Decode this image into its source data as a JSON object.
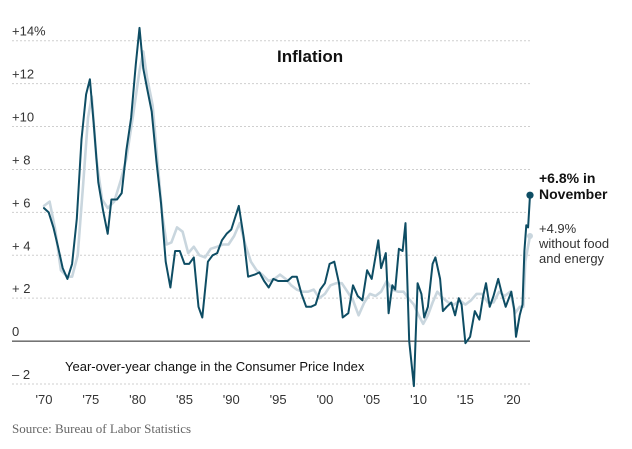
{
  "chart_data": {
    "type": "line",
    "title": "Inflation",
    "subtitle": "Year-over-year change in the Consumer Price Index",
    "source": "Source: Bureau of Labor Statistics",
    "x_ticks": [
      {
        "value": 1970,
        "label": "'70"
      },
      {
        "value": 1975,
        "label": "'75"
      },
      {
        "value": 1980,
        "label": "'80"
      },
      {
        "value": 1985,
        "label": "'85"
      },
      {
        "value": 1990,
        "label": "'90"
      },
      {
        "value": 1995,
        "label": "'95"
      },
      {
        "value": 2000,
        "label": "'00"
      },
      {
        "value": 2005,
        "label": "'05"
      },
      {
        "value": 2010,
        "label": "'10"
      },
      {
        "value": 2015,
        "label": "'15"
      },
      {
        "value": 2020,
        "label": "'20"
      }
    ],
    "y_ticks": [
      {
        "value": 14,
        "label": "+14%"
      },
      {
        "value": 12,
        "label": "+12"
      },
      {
        "value": 10,
        "label": "+10"
      },
      {
        "value": 8,
        "label": "+ 8"
      },
      {
        "value": 6,
        "label": "+ 6"
      },
      {
        "value": 4,
        "label": "+ 4"
      },
      {
        "value": 2,
        "label": "+ 2"
      },
      {
        "value": 0,
        "label": "0"
      },
      {
        "value": -2,
        "label": "– 2"
      }
    ],
    "xlim": [
      1970,
      2021.9
    ],
    "ylim": [
      -2,
      14.5
    ],
    "grid": true,
    "series": [
      {
        "name": "+6.8% in November",
        "label_lines": [
          "+6.8% in",
          "November"
        ],
        "color": "#0e4d64",
        "points": [
          [
            1970.0,
            6.2
          ],
          [
            1970.5,
            6.0
          ],
          [
            1971.0,
            5.3
          ],
          [
            1971.5,
            4.4
          ],
          [
            1972.0,
            3.4
          ],
          [
            1972.5,
            2.9
          ],
          [
            1973.0,
            3.6
          ],
          [
            1973.5,
            5.7
          ],
          [
            1974.0,
            9.4
          ],
          [
            1974.5,
            11.5
          ],
          [
            1974.9,
            12.2
          ],
          [
            1975.3,
            10.2
          ],
          [
            1975.8,
            7.4
          ],
          [
            1976.3,
            6.1
          ],
          [
            1976.8,
            5.0
          ],
          [
            1977.2,
            6.6
          ],
          [
            1977.8,
            6.6
          ],
          [
            1978.3,
            6.9
          ],
          [
            1978.8,
            8.9
          ],
          [
            1979.3,
            10.4
          ],
          [
            1979.8,
            12.9
          ],
          [
            1980.2,
            14.6
          ],
          [
            1980.6,
            12.7
          ],
          [
            1981.0,
            11.8
          ],
          [
            1981.5,
            10.7
          ],
          [
            1982.0,
            8.4
          ],
          [
            1982.5,
            6.4
          ],
          [
            1983.0,
            3.7
          ],
          [
            1983.5,
            2.5
          ],
          [
            1984.0,
            4.2
          ],
          [
            1984.5,
            4.2
          ],
          [
            1985.0,
            3.6
          ],
          [
            1985.5,
            3.6
          ],
          [
            1986.0,
            3.9
          ],
          [
            1986.5,
            1.6
          ],
          [
            1986.9,
            1.1
          ],
          [
            1987.5,
            3.7
          ],
          [
            1988.0,
            4.0
          ],
          [
            1988.5,
            4.1
          ],
          [
            1989.0,
            4.7
          ],
          [
            1989.5,
            5.0
          ],
          [
            1990.0,
            5.2
          ],
          [
            1990.8,
            6.3
          ],
          [
            1991.3,
            4.9
          ],
          [
            1991.8,
            3.0
          ],
          [
            1992.5,
            3.1
          ],
          [
            1993.0,
            3.2
          ],
          [
            1993.5,
            2.8
          ],
          [
            1994.0,
            2.5
          ],
          [
            1994.5,
            2.9
          ],
          [
            1995.0,
            2.8
          ],
          [
            1995.5,
            2.8
          ],
          [
            1996.0,
            2.8
          ],
          [
            1996.5,
            3.0
          ],
          [
            1997.0,
            3.0
          ],
          [
            1997.5,
            2.2
          ],
          [
            1998.0,
            1.6
          ],
          [
            1998.5,
            1.6
          ],
          [
            1999.0,
            1.7
          ],
          [
            1999.5,
            2.4
          ],
          [
            2000.0,
            2.7
          ],
          [
            2000.5,
            3.6
          ],
          [
            2001.0,
            3.7
          ],
          [
            2001.5,
            2.7
          ],
          [
            2001.9,
            1.1
          ],
          [
            2002.5,
            1.3
          ],
          [
            2003.0,
            2.6
          ],
          [
            2003.5,
            2.1
          ],
          [
            2004.0,
            1.9
          ],
          [
            2004.5,
            3.3
          ],
          [
            2005.0,
            2.9
          ],
          [
            2005.7,
            4.7
          ],
          [
            2006.0,
            3.4
          ],
          [
            2006.5,
            4.1
          ],
          [
            2006.8,
            1.3
          ],
          [
            2007.2,
            2.6
          ],
          [
            2007.5,
            2.4
          ],
          [
            2007.9,
            4.3
          ],
          [
            2008.3,
            4.2
          ],
          [
            2008.6,
            5.5
          ],
          [
            2009.0,
            0.0
          ],
          [
            2009.5,
            -2.1
          ],
          [
            2009.9,
            2.7
          ],
          [
            2010.3,
            2.2
          ],
          [
            2010.6,
            1.1
          ],
          [
            2011.0,
            1.6
          ],
          [
            2011.5,
            3.6
          ],
          [
            2011.8,
            3.9
          ],
          [
            2012.3,
            2.9
          ],
          [
            2012.6,
            1.4
          ],
          [
            2013.0,
            1.6
          ],
          [
            2013.5,
            1.8
          ],
          [
            2013.9,
            1.2
          ],
          [
            2014.3,
            2.0
          ],
          [
            2014.6,
            1.7
          ],
          [
            2015.0,
            -0.1
          ],
          [
            2015.5,
            0.2
          ],
          [
            2016.0,
            1.4
          ],
          [
            2016.5,
            1.0
          ],
          [
            2016.9,
            2.1
          ],
          [
            2017.2,
            2.7
          ],
          [
            2017.6,
            1.6
          ],
          [
            2018.0,
            2.1
          ],
          [
            2018.5,
            2.9
          ],
          [
            2018.9,
            2.2
          ],
          [
            2019.3,
            1.6
          ],
          [
            2019.9,
            2.3
          ],
          [
            2020.2,
            1.5
          ],
          [
            2020.4,
            0.2
          ],
          [
            2020.8,
            1.2
          ],
          [
            2021.1,
            1.7
          ],
          [
            2021.3,
            4.2
          ],
          [
            2021.5,
            5.4
          ],
          [
            2021.7,
            5.3
          ],
          [
            2021.9,
            6.8
          ]
        ]
      },
      {
        "name": "+4.9% without food and energy",
        "label_lines": [
          "+4.9%",
          "without food",
          "and energy"
        ],
        "color": "#c9d6de",
        "points": [
          [
            1970.0,
            6.3
          ],
          [
            1970.6,
            6.5
          ],
          [
            1971.2,
            5.2
          ],
          [
            1971.8,
            3.3
          ],
          [
            1972.5,
            3.0
          ],
          [
            1973.0,
            3.0
          ],
          [
            1973.6,
            4.0
          ],
          [
            1974.2,
            7.4
          ],
          [
            1974.7,
            10.4
          ],
          [
            1975.1,
            11.4
          ],
          [
            1975.6,
            8.5
          ],
          [
            1976.2,
            6.6
          ],
          [
            1976.8,
            6.2
          ],
          [
            1977.5,
            6.5
          ],
          [
            1978.2,
            7.5
          ],
          [
            1978.8,
            8.5
          ],
          [
            1979.5,
            10.5
          ],
          [
            1980.2,
            12.6
          ],
          [
            1980.6,
            13.5
          ],
          [
            1981.0,
            12.3
          ],
          [
            1981.6,
            11.0
          ],
          [
            1982.1,
            8.5
          ],
          [
            1982.6,
            6.0
          ],
          [
            1983.1,
            4.5
          ],
          [
            1983.6,
            4.6
          ],
          [
            1984.2,
            5.3
          ],
          [
            1984.8,
            5.1
          ],
          [
            1985.4,
            4.1
          ],
          [
            1986.0,
            4.4
          ],
          [
            1986.6,
            4.0
          ],
          [
            1987.2,
            3.9
          ],
          [
            1987.8,
            4.3
          ],
          [
            1988.5,
            4.4
          ],
          [
            1989.1,
            4.5
          ],
          [
            1989.7,
            4.5
          ],
          [
            1990.3,
            4.9
          ],
          [
            1990.9,
            5.5
          ],
          [
            1991.5,
            4.5
          ],
          [
            1992.1,
            3.7
          ],
          [
            1992.7,
            3.3
          ],
          [
            1993.3,
            3.1
          ],
          [
            1994.0,
            2.8
          ],
          [
            1994.6,
            2.9
          ],
          [
            1995.2,
            3.1
          ],
          [
            1995.8,
            2.9
          ],
          [
            1996.4,
            2.6
          ],
          [
            1997.0,
            2.4
          ],
          [
            1997.6,
            2.3
          ],
          [
            1998.2,
            2.3
          ],
          [
            1998.8,
            2.4
          ],
          [
            1999.4,
            2.0
          ],
          [
            2000.0,
            2.2
          ],
          [
            2000.6,
            2.6
          ],
          [
            2001.2,
            2.7
          ],
          [
            2001.8,
            2.7
          ],
          [
            2002.4,
            2.3
          ],
          [
            2003.0,
            1.9
          ],
          [
            2003.6,
            1.2
          ],
          [
            2004.2,
            1.8
          ],
          [
            2004.8,
            2.2
          ],
          [
            2005.4,
            2.1
          ],
          [
            2006.0,
            2.3
          ],
          [
            2006.6,
            2.8
          ],
          [
            2007.2,
            2.4
          ],
          [
            2007.8,
            2.3
          ],
          [
            2008.4,
            2.3
          ],
          [
            2008.9,
            2.0
          ],
          [
            2009.5,
            1.7
          ],
          [
            2010.0,
            1.2
          ],
          [
            2010.5,
            0.8
          ],
          [
            2011.0,
            1.2
          ],
          [
            2011.5,
            1.8
          ],
          [
            2012.0,
            2.3
          ],
          [
            2012.6,
            2.0
          ],
          [
            2013.2,
            1.8
          ],
          [
            2013.8,
            1.7
          ],
          [
            2014.4,
            1.9
          ],
          [
            2015.0,
            1.7
          ],
          [
            2015.6,
            1.9
          ],
          [
            2016.2,
            2.2
          ],
          [
            2016.8,
            2.2
          ],
          [
            2017.4,
            1.8
          ],
          [
            2018.0,
            1.8
          ],
          [
            2018.6,
            2.3
          ],
          [
            2019.2,
            2.1
          ],
          [
            2019.8,
            2.3
          ],
          [
            2020.3,
            1.3
          ],
          [
            2020.8,
            1.6
          ],
          [
            2021.2,
            1.6
          ],
          [
            2021.4,
            3.7
          ],
          [
            2021.6,
            4.2
          ],
          [
            2021.9,
            4.9
          ]
        ]
      }
    ]
  }
}
